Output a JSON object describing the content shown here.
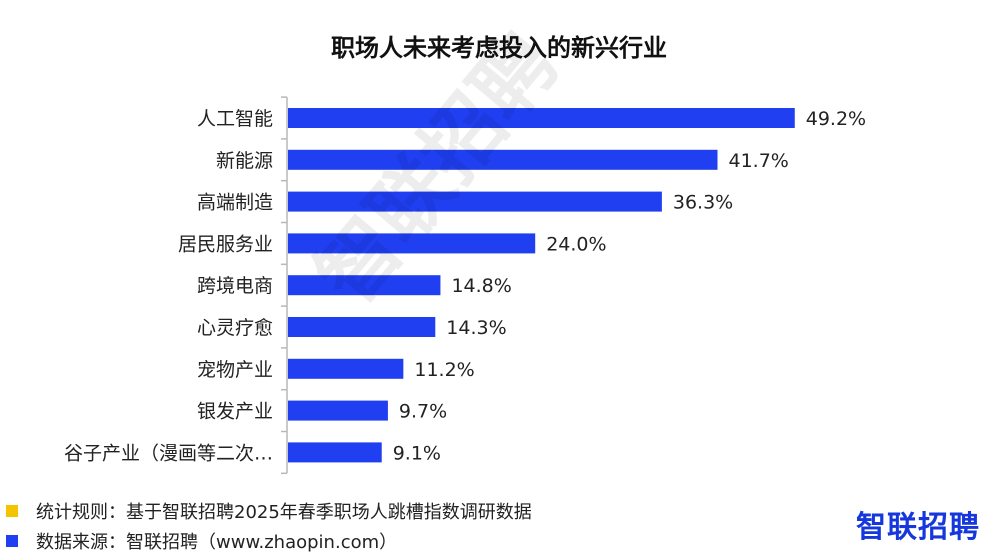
{
  "chart_data": {
    "type": "bar",
    "orientation": "horizontal",
    "title": "职场人未来考虑投入的新兴行业",
    "categories": [
      "人工智能",
      "新能源",
      "高端制造",
      "居民服务业",
      "跨境电商",
      "心灵疗愈",
      "宠物产业",
      "银发产业",
      "谷子产业（漫画等二次…"
    ],
    "values": [
      49.2,
      41.7,
      36.3,
      24.0,
      14.8,
      14.3,
      11.2,
      9.7,
      9.1
    ],
    "value_labels": [
      "49.2%",
      "41.7%",
      "36.3%",
      "24.0%",
      "14.8%",
      "14.3%",
      "11.2%",
      "9.7%",
      "9.1%"
    ],
    "xlim": [
      0,
      60
    ],
    "grid": false,
    "bar_color": "#1f3ff0"
  },
  "watermark": "智联招聘",
  "notes": [
    {
      "text": "统计规则：基于智联招聘2025年春季职场人跳槽指数调研数据",
      "color": "#f5c400"
    },
    {
      "text": "数据来源：智联招聘（www.zhaopin.com）",
      "color": "#1f3ff0"
    }
  ],
  "brand": {
    "name": "智联招聘"
  }
}
